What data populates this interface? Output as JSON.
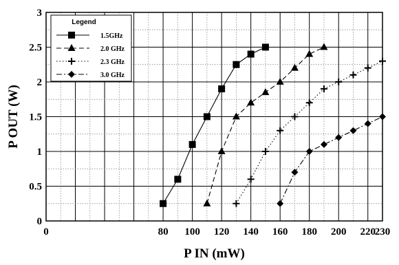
{
  "chart_data": {
    "type": "line",
    "xlabel": "P IN (mW)",
    "ylabel": "P OUT (W)",
    "xlim": [
      0,
      230
    ],
    "ylim": [
      0,
      3
    ],
    "x_tick_values": [
      0,
      80,
      100,
      120,
      140,
      160,
      180,
      200,
      220,
      230
    ],
    "x_tick_labels": [
      "0",
      "80",
      "100",
      "120",
      "140",
      "160",
      "180",
      "200",
      "220",
      "230"
    ],
    "y_tick_values": [
      0,
      0.5,
      1,
      1.5,
      2,
      2.5,
      3
    ],
    "y_tick_labels": [
      "0",
      "0.5",
      "1",
      "1.5",
      "2",
      "2.5",
      "3"
    ],
    "grid": "major-solid-minor-dotted",
    "legend_title": "Legend",
    "legend_position": "top-left",
    "series": [
      {
        "name": "1.5GHz",
        "marker": "square",
        "dash": "solid",
        "x": [
          80,
          90,
          100,
          110,
          120,
          130,
          140,
          150
        ],
        "y": [
          0.25,
          0.6,
          1.1,
          1.5,
          1.9,
          2.25,
          2.4,
          2.5
        ]
      },
      {
        "name": "2.0 GHz",
        "marker": "triangle",
        "dash": "dashed",
        "x": [
          110,
          120,
          130,
          140,
          150,
          160,
          170,
          180,
          190
        ],
        "y": [
          0.25,
          1.0,
          1.5,
          1.7,
          1.85,
          2.0,
          2.2,
          2.4,
          2.5
        ]
      },
      {
        "name": "2.3 GHz",
        "marker": "plus",
        "dash": "dotted",
        "x": [
          130,
          140,
          150,
          160,
          170,
          180,
          190,
          200,
          210,
          220,
          230
        ],
        "y": [
          0.25,
          0.6,
          1.0,
          1.3,
          1.5,
          1.7,
          1.9,
          2.0,
          2.1,
          2.2,
          2.3
        ]
      },
      {
        "name": "3.0 GHz",
        "marker": "diamond",
        "dash": "dashdot",
        "x": [
          160,
          170,
          180,
          190,
          200,
          210,
          220,
          230
        ],
        "y": [
          0.25,
          0.7,
          1.0,
          1.1,
          1.2,
          1.3,
          1.4,
          1.5
        ]
      }
    ]
  }
}
